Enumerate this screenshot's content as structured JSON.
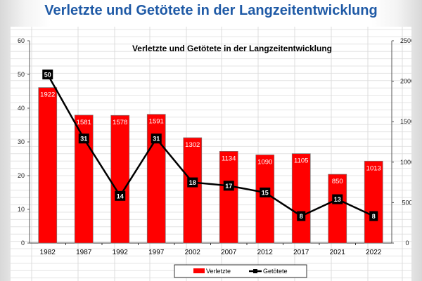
{
  "page": {
    "title": "Verletzte und Getötete in der Langzeitentwicklung"
  },
  "chart_data": {
    "type": "bar",
    "title": "Verletzte und Getötete in der Langzeitentwicklung",
    "categories": [
      "1982",
      "1987",
      "1992",
      "1997",
      "2002",
      "2007",
      "2012",
      "2017",
      "2021",
      "2022"
    ],
    "series": [
      {
        "name": "Verletzte",
        "type": "bar",
        "axis": "right",
        "color": "#ff0000",
        "values": [
          1922,
          1581,
          1578,
          1591,
          1302,
          1134,
          1090,
          1105,
          850,
          1013
        ]
      },
      {
        "name": "Getötete",
        "type": "line",
        "axis": "left",
        "color": "#000000",
        "values": [
          50,
          31,
          14,
          31,
          18,
          17,
          15,
          8,
          13,
          8
        ]
      }
    ],
    "y_left": {
      "min": 0,
      "max": 60,
      "ticks": [
        "0",
        "10",
        "20",
        "30",
        "40",
        "50",
        "60"
      ]
    },
    "y_right": {
      "min": 0,
      "max": 2500,
      "ticks": [
        "0",
        "500",
        "1000",
        "1500",
        "2000",
        "2500"
      ]
    },
    "legend": {
      "position": "bottom",
      "entries": [
        "Verletzte",
        "Getötete"
      ]
    },
    "grid": true
  }
}
